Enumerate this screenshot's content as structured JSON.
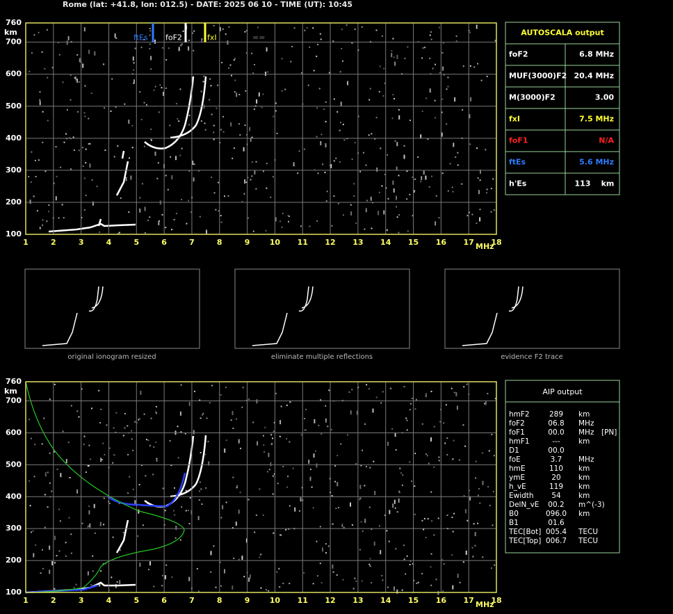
{
  "header": "Rome (lat: +41.8, lon: 012.5) - DATE: 2025 06 10 - TIME (UT): 10:45",
  "ionogram": {
    "y_unit": "km",
    "x_unit": "MHz",
    "ylim": [
      100,
      760
    ],
    "yticks": [
      760,
      700,
      600,
      500,
      400,
      300,
      200,
      100
    ],
    "xlim": [
      1,
      18
    ],
    "xticks": [
      1,
      2,
      3,
      4,
      5,
      6,
      7,
      8,
      9,
      10,
      11,
      12,
      13,
      14,
      15,
      16,
      17,
      18
    ],
    "markers": [
      {
        "label": "ftEs",
        "color": "#2f7cff"
      },
      {
        "label": "foF2",
        "color": "#ffffff"
      },
      {
        "label": "fxI",
        "color": "#ffff33"
      },
      {
        "label": "==",
        "color": "#777777"
      }
    ]
  },
  "autoscala": {
    "title": "AUTOSCALA output",
    "rows": [
      {
        "label": "foF2",
        "value": "6.8 MHz",
        "color": "#ffffff"
      },
      {
        "label": "MUF(3000)F2",
        "value": "20.4 MHz",
        "color": "#ffffff"
      },
      {
        "label": "M(3000)F2",
        "value": "3.00",
        "color": "#ffffff"
      },
      {
        "label": "fxI",
        "value": "7.5 MHz",
        "color": "#ffff33"
      },
      {
        "label": "foF1",
        "value": "N/A",
        "color": "#ff2020"
      },
      {
        "label": "ftEs",
        "value": "5.6 MHz",
        "color": "#2f7cff"
      },
      {
        "label": "h'Es",
        "value": "113",
        "unit": "km",
        "color": "#ffffff"
      }
    ]
  },
  "thumbnails": [
    "original ionogram resized",
    "eliminate multiple reflections",
    "evidence F2 trace"
  ],
  "aip": {
    "title": "AIP output",
    "rows": [
      [
        "hmF2",
        "289",
        "km"
      ],
      [
        "foF2",
        "06.8",
        "MHz"
      ],
      [
        "foF1",
        "00.0",
        "MHz",
        "[PN]"
      ],
      [
        "hmF1",
        "---",
        "km"
      ],
      [
        "D1",
        "00.0"
      ],
      [
        "foE",
        "3.7",
        "MHz"
      ],
      [
        "hmE",
        "110",
        "km"
      ],
      [
        "ymE",
        "20",
        "km"
      ],
      [
        "h_vE",
        "119",
        "km"
      ],
      [
        "Ewidth",
        "54",
        "km"
      ],
      [
        "DelN_vE",
        "00.2",
        "m^(-3)"
      ],
      [
        "B0",
        "096.0",
        "km"
      ],
      [
        "B1",
        "01.6"
      ],
      [
        "TEC[Bot]",
        "005.4",
        "TECU"
      ],
      [
        "TEC[Top]",
        "006.7",
        "TECU"
      ]
    ]
  }
}
